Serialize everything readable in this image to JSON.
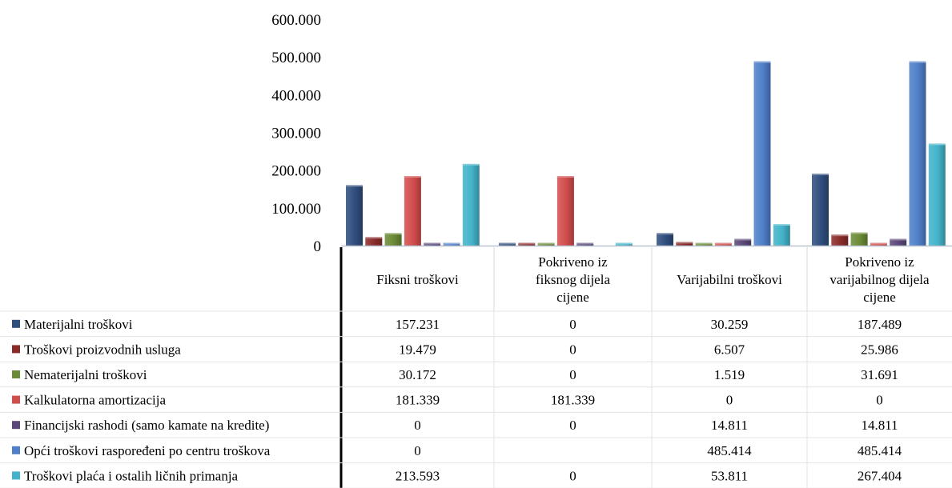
{
  "chart_data": {
    "type": "bar",
    "title": "",
    "xlabel": "",
    "ylabel": "",
    "ylim": [
      0,
      600000
    ],
    "yticks": [
      0,
      100000,
      200000,
      300000,
      400000,
      500000,
      600000
    ],
    "ytick_labels": [
      "0",
      "100.000",
      "200.000",
      "300.000",
      "400.000",
      "500.000",
      "600.000"
    ],
    "grid": false,
    "legend": "data table below chart",
    "categories": [
      [
        "Fiksni troškovi"
      ],
      [
        "Pokriveno  iz",
        "fiksnog dijela",
        "cijene"
      ],
      [
        "Varijabilni troškovi"
      ],
      [
        "Pokriveno iz",
        "varijabilnog dijela",
        "cijene"
      ]
    ],
    "series": [
      {
        "name": "Materijalni troškovi",
        "color": "#2f4d7d",
        "values": [
          157231,
          0,
          30259,
          187489
        ],
        "labels": [
          "157.231",
          "0",
          "30.259",
          "187.489"
        ]
      },
      {
        "name": "Troškovi proizvodnih usluga",
        "color": "#8a2b2a",
        "values": [
          19479,
          0,
          6507,
          25986
        ],
        "labels": [
          "19.479",
          "0",
          "6.507",
          "25.986"
        ]
      },
      {
        "name": "Nematerijalni troškovi",
        "color": "#6b8a35",
        "values": [
          30172,
          0,
          1519,
          31691
        ],
        "labels": [
          "30.172",
          "0",
          "1.519",
          "31.691"
        ]
      },
      {
        "name": "Kalkulatorna amortizacija",
        "color": "#d24c4c",
        "values": [
          181339,
          181339,
          0,
          0
        ],
        "labels": [
          "181.339",
          "181.339",
          "0",
          "0"
        ]
      },
      {
        "name": "Financijski rashodi (samo kamate na kredite)",
        "color": "#5a4678",
        "values": [
          0,
          0,
          14811,
          14811
        ],
        "labels": [
          "0",
          "0",
          "14.811",
          "14.811"
        ]
      },
      {
        "name": "Opći troškovi raspoređeni po centru troškova",
        "color": "#4f7fc9",
        "values": [
          0,
          null,
          485414,
          485414
        ],
        "labels": [
          "0",
          "",
          "485.414",
          "485.414"
        ]
      },
      {
        "name": "Troškovi plaća i ostalih ličnih primanja",
        "color": "#43b3c9",
        "values": [
          213593,
          0,
          53811,
          267404
        ],
        "labels": [
          "213.593",
          "0",
          "53.811",
          "267.404"
        ]
      }
    ]
  }
}
